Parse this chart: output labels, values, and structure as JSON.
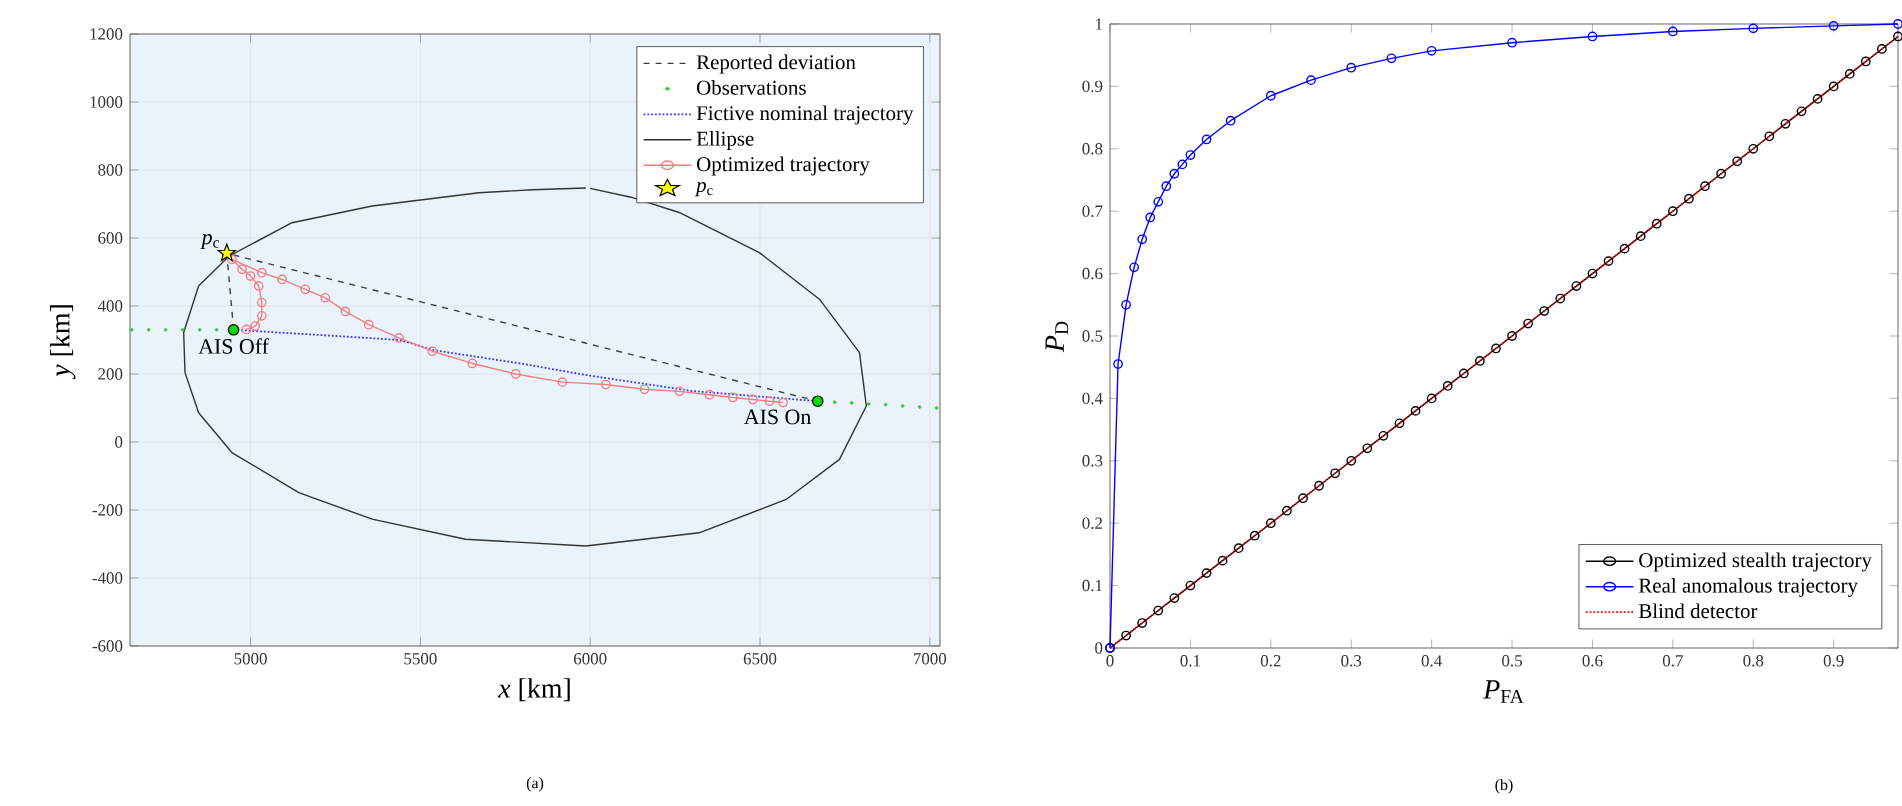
{
  "chart_data": [
    {
      "type": "line",
      "xlabel": "*x* [km]",
      "ylabel": "*y* [km]",
      "xlim": [
        4645,
        7030
      ],
      "ylim": [
        -600,
        1200
      ],
      "xticks": [
        5000,
        5500,
        6000,
        6500,
        7000
      ],
      "yticks": [
        -600,
        -400,
        -200,
        0,
        200,
        400,
        600,
        800,
        1000,
        1200
      ],
      "grid": true,
      "legend": "top right",
      "annotations": [
        {
          "text": "*p*$_{c}$",
          "x": 4930,
          "y": 555
        },
        {
          "text": "AIS Off",
          "x": 4950,
          "y": 330
        },
        {
          "text": "AIS On",
          "x": 6670,
          "y": 120
        },
        "(a)"
      ],
      "series": [
        {
          "name": "Reported deviation",
          "color": "#404040",
          "line_style": "dashed",
          "marker": "none",
          "x": [
            4950,
            4930,
            6670
          ],
          "values": [
            330,
            555,
            120
          ]
        },
        {
          "name": "Observations",
          "type": "scatter",
          "color": "#33cc33",
          "marker": "circle",
          "x": [
            4650,
            4700,
            4750,
            4800,
            4850,
            4900,
            6720,
            6770,
            6820,
            6870,
            6920,
            6970,
            7020
          ],
          "values": [
            330,
            330,
            330,
            330,
            330,
            330,
            117,
            115,
            112,
            110,
            106,
            103,
            100
          ]
        },
        {
          "name": "Fictive nominal trajectory",
          "color": "#3333ff",
          "line_style": "dotted",
          "marker": "none",
          "x": [
            4950,
            5200,
            5440,
            5540,
            5800,
            6000,
            6300,
            6670
          ],
          "values": [
            330,
            315,
            300,
            270,
            230,
            195,
            150,
            120
          ]
        },
        {
          "name": "Ellipse",
          "color": "#333333",
          "line_style": "solid",
          "marker": "none",
          "x": [
            5987,
            5830,
            5672,
            5358,
            5122,
            4937,
            4847,
            4803,
            4807,
            4847,
            4945,
            5142,
            5358,
            5633,
            5987,
            6321,
            6577,
            6734,
            6813,
            6793,
            6675,
            6498,
            6262,
            6120,
            6000
          ],
          "values": [
            747,
            742,
            733,
            694,
            645,
            547,
            459,
            322,
            204,
            86,
            -31,
            -149,
            -227,
            -286,
            -306,
            -267,
            -169,
            -51,
            106,
            263,
            420,
            557,
            675,
            720,
            746
          ]
        },
        {
          "name": "Optimized trajectory",
          "color": "#f08080",
          "line_style": "solid",
          "marker": "circle",
          "x": [
            4988,
            5014,
            5033,
            5033,
            5024,
            5000,
            4975,
            4945,
            5033,
            5093,
            5161,
            5220,
            5279,
            5348,
            5437,
            5535,
            5653,
            5781,
            5918,
            6046,
            6160,
            6263,
            6351,
            6420,
            6479,
            6528,
            6568
          ],
          "values": [
            331,
            341,
            371,
            410,
            459,
            488,
            508,
            537,
            498,
            478,
            449,
            424,
            384,
            345,
            306,
            267,
            231,
            200,
            176,
            169,
            155,
            149,
            139,
            131,
            125,
            120,
            116
          ]
        },
        {
          "name": "*p*$_{c}$",
          "type": "scatter",
          "color": "#ffff00",
          "marker": "star",
          "x": [
            4930
          ],
          "values": [
            555
          ]
        },
        {
          "type": "scatter",
          "color": "#00dd00",
          "marker": "circle",
          "x": [
            4950,
            6670
          ],
          "values": [
            330,
            120
          ]
        }
      ]
    },
    {
      "type": "line",
      "xlabel": "*P*$_{FA}$",
      "ylabel": "*P*$_{D}$",
      "xlim": [
        0,
        0.98
      ],
      "ylim": [
        0,
        1
      ],
      "xticks": [
        0,
        0.1,
        0.2,
        0.3,
        0.4,
        0.5,
        0.6,
        0.7,
        0.8,
        0.9
      ],
      "yticks": [
        0,
        0.1,
        0.2,
        0.3,
        0.4,
        0.5,
        0.6,
        0.7,
        0.8,
        0.9,
        1
      ],
      "legend": "bottom right",
      "annotations": [
        "(b)"
      ],
      "series": [
        {
          "name": "Optimized stealth trajectory",
          "color": "#000000",
          "line_style": "solid",
          "marker": "circle",
          "x": [
            0,
            0.02,
            0.04,
            0.06,
            0.08,
            0.1,
            0.12,
            0.14,
            0.16,
            0.18,
            0.2,
            0.22,
            0.24,
            0.26,
            0.28,
            0.3,
            0.32,
            0.34,
            0.36,
            0.38,
            0.4,
            0.42,
            0.44,
            0.46,
            0.48,
            0.5,
            0.52,
            0.54,
            0.56,
            0.58,
            0.6,
            0.62,
            0.64,
            0.66,
            0.68,
            0.7,
            0.72,
            0.74,
            0.76,
            0.78,
            0.8,
            0.82,
            0.84,
            0.86,
            0.88,
            0.9,
            0.92,
            0.94,
            0.96,
            0.98
          ],
          "values": [
            0,
            0.02,
            0.04,
            0.06,
            0.08,
            0.1,
            0.12,
            0.14,
            0.16,
            0.18,
            0.2,
            0.22,
            0.24,
            0.26,
            0.28,
            0.3,
            0.32,
            0.34,
            0.36,
            0.38,
            0.4,
            0.42,
            0.44,
            0.46,
            0.48,
            0.5,
            0.52,
            0.54,
            0.56,
            0.58,
            0.6,
            0.62,
            0.64,
            0.66,
            0.68,
            0.7,
            0.72,
            0.74,
            0.76,
            0.78,
            0.8,
            0.82,
            0.84,
            0.86,
            0.88,
            0.9,
            0.92,
            0.94,
            0.96,
            0.98
          ]
        },
        {
          "name": "Real anomalous trajectory",
          "color": "#0000ff",
          "line_style": "solid",
          "marker": "circle",
          "x": [
            0,
            0.01,
            0.02,
            0.03,
            0.04,
            0.05,
            0.06,
            0.07,
            0.08,
            0.09,
            0.1,
            0.12,
            0.15,
            0.2,
            0.25,
            0.3,
            0.35,
            0.4,
            0.5,
            0.6,
            0.7,
            0.8,
            0.9,
            0.98
          ],
          "values": [
            0,
            0.455,
            0.55,
            0.61,
            0.655,
            0.69,
            0.715,
            0.74,
            0.76,
            0.775,
            0.79,
            0.815,
            0.845,
            0.885,
            0.91,
            0.93,
            0.945,
            0.957,
            0.97,
            0.98,
            0.988,
            0.993,
            0.997,
            1
          ]
        },
        {
          "name": "Blind detector",
          "color": "#ff0000",
          "line_style": "dotted",
          "marker": "none",
          "x": [
            0,
            0.98
          ],
          "values": [
            0,
            0.98
          ]
        }
      ]
    }
  ]
}
